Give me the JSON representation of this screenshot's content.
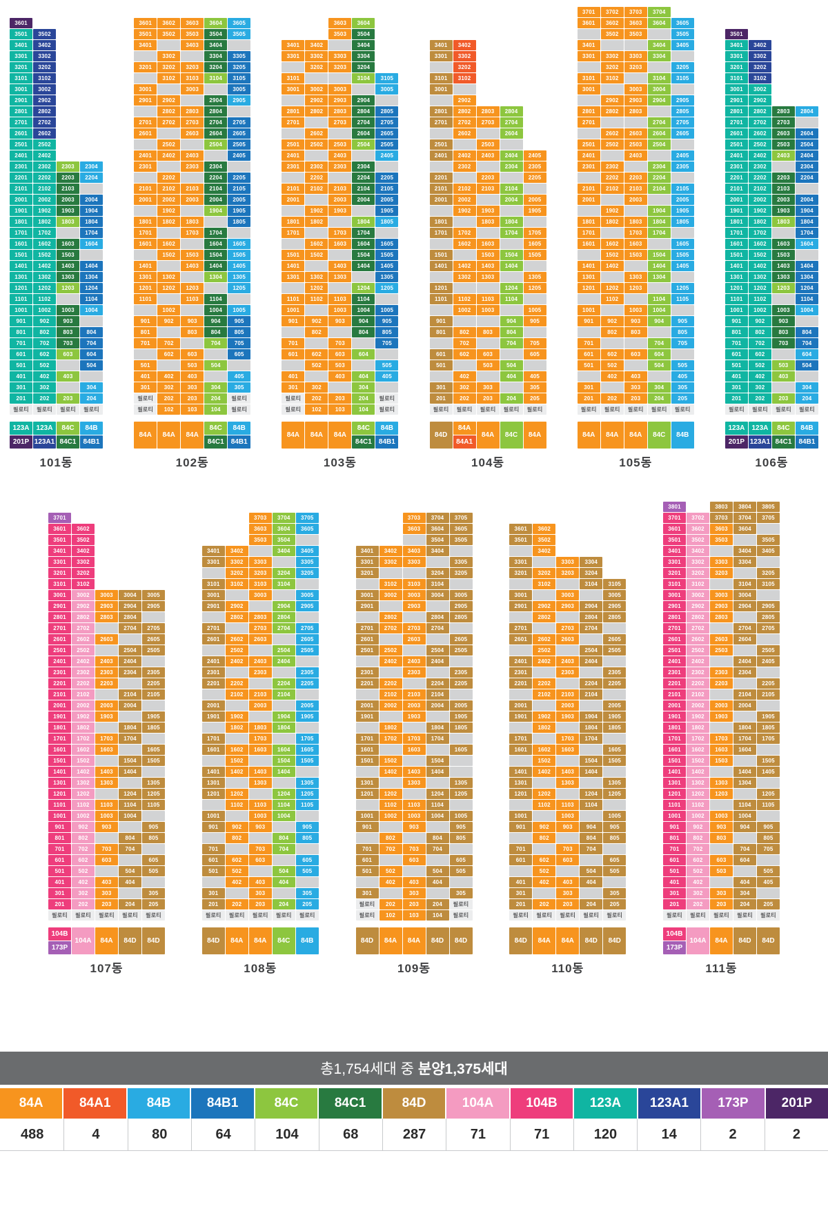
{
  "banner": {
    "prefix": "총1,754세대 중",
    "bold": "분양1,375세대"
  },
  "labels": {
    "piloti": "필로티"
  },
  "palette": {
    "A": {
      "label": "84A",
      "color": "#F7941E"
    },
    "a": {
      "label": "84A1",
      "color": "#F15A29"
    },
    "B": {
      "label": "84B",
      "color": "#29ABE2"
    },
    "b": {
      "label": "84B1",
      "color": "#1C75BC"
    },
    "C": {
      "label": "84C",
      "color": "#8DC63F"
    },
    "c": {
      "label": "84C1",
      "color": "#287A40"
    },
    "D": {
      "label": "84D",
      "color": "#BE8C3E"
    },
    "P": {
      "label": "104A",
      "color": "#F49BC1"
    },
    "Q": {
      "label": "104B",
      "color": "#EE3D7C"
    },
    "T": {
      "label": "123A",
      "color": "#10B5A2"
    },
    "t": {
      "label": "123A1",
      "color": "#2A4699"
    },
    "S": {
      "label": "173P",
      "color": "#A55FB5"
    },
    "R": {
      "label": "201P",
      "color": "#4C2666"
    },
    "gray_color": "#D2D3D4"
  },
  "legend": {
    "items": [
      {
        "code": "A",
        "count": "488"
      },
      {
        "code": "a",
        "count": "4"
      },
      {
        "code": "B",
        "count": "80"
      },
      {
        "code": "b",
        "count": "64"
      },
      {
        "code": "C",
        "count": "104"
      },
      {
        "code": "c",
        "count": "68"
      },
      {
        "code": "D",
        "count": "287"
      },
      {
        "code": "P",
        "count": "71"
      },
      {
        "code": "Q",
        "count": "71"
      },
      {
        "code": "T",
        "count": "120"
      },
      {
        "code": "t",
        "count": "14"
      },
      {
        "code": "S",
        "count": "2"
      },
      {
        "code": "R",
        "count": "2"
      }
    ]
  },
  "rows_layout": [
    [
      "101동",
      "102동",
      "103동",
      "104동",
      "105동",
      "106동"
    ],
    [
      "107동",
      "108동",
      "109동",
      "110동",
      "111동"
    ]
  ],
  "buildings": [
    {
      "name": "101동",
      "top_floor": 36,
      "cols": 4,
      "label_cols": [
        [
          "T",
          "R"
        ],
        [
          "T",
          "t"
        ],
        [
          "C",
          "c"
        ],
        [
          "B",
          "b"
        ]
      ],
      "rows": [
        "R<..",
        "Tt..",
        "Tt..",
        "Tt..",
        "Tt..",
        "Tt..",
        "Tt..",
        "Tt..",
        "Tt..",
        "Tt..",
        "Tt..",
        "TT..",
        "TT..",
        "TTCB",
        "TTcB",
        "TTcg",
        "TTcb",
        "TTcb",
        "TTCb",
        "TTgb",
        "TTcB",
        "TTcg",
        "TTcb",
        "TTcb",
        "TTCb",
        "TTgb",
        "TTcB",
        "TTcg",
        "TTcb",
        "TTcb",
        "TTCb",
        "TTgb",
        "TTCg",
        "TTgB",
        "TTCB",
        "pppp"
      ]
    },
    {
      "name": "102동",
      "top_floor": 36,
      "cols": 5,
      "label_cols": [
        [
          "A"
        ],
        [
          "A"
        ],
        [
          "A"
        ],
        [
          "C",
          "c"
        ],
        [
          "B",
          "b"
        ]
      ],
      "rows": [
        "AAACB",
        "AAAcB",
        "AgAcg",
        "gAgcb",
        "AAAcb",
        "gAACb",
        "AgAgb",
        "AAgcB",
        "gAAcg",
        "AAAcb",
        "AgAcb",
        "gAgCb",
        "AAAgb",
        "AgAcg",
        "gAgcb",
        "AAAcb",
        "AAAcb",
        "gAgCb",
        "AAAgb",
        "AgAcg",
        "AAgcB",
        "gAAcB",
        "AgAcB",
        "AAgCB",
        "AAAgB",
        "AgAcg",
        "gAgcB",
        "AAAcb",
        "AgAcb",
        "AAgCb",
        "gAAgb",
        "AgACg",
        "AAAgB",
        "AAACB",
        "pAACp",
        "pAACp"
      ]
    },
    {
      "name": "103동",
      "top_floor": 36,
      "cols": 5,
      "label_cols": [
        [
          "A"
        ],
        [
          "A"
        ],
        [
          "A"
        ],
        [
          "C",
          "c"
        ],
        [
          "B",
          "b"
        ]
      ],
      "rows": [
        "..AC.",
        "..Ac.",
        "AAgc.",
        "AAAc.",
        "gAAc.",
        "AggCB",
        "AAAgB",
        "gAAcg",
        "AAAcb",
        "AgAcb",
        "gAgcb",
        "AAACb",
        "AgAgB",
        "AAAcg",
        "gAgcb",
        "AAAcb",
        "AgAcb",
        "gAAgb",
        "AAgCB",
        "AgAcg",
        "gAAcb",
        "AAgcb",
        "AgAcb",
        "AAAgb",
        "gAgCB",
        "AAAcg",
        "AgAcb",
        "AAAcb",
        "gAgcb",
        "AgAgb",
        "AAACg",
        "gAAgB",
        "AgACB",
        "AAgCg",
        "pAACp",
        "pAACp"
      ]
    },
    {
      "name": "104동",
      "top_floor": 34,
      "cols": 5,
      "label_cols": [
        [
          "D"
        ],
        [
          "A",
          "a"
        ],
        [
          "A"
        ],
        [
          "C"
        ],
        [
          "A"
        ]
      ],
      "rows": [
        "Da...",
        "Da...",
        "ga...",
        "Da...",
        "Dg...",
        "gA...",
        "DAAC.",
        "DAAC.",
        "gAgC.",
        "DgAg.",
        "DAACA",
        "gAgCA",
        "DgAgA",
        "DAACg",
        "DAgCA",
        "gAAgA",
        "DgACg",
        "DAgCA",
        "gAAgA",
        "DgACA",
        "DAACg",
        "gAAgA",
        "DggCA",
        "DAACg",
        "gAAgA",
        "DggCA",
        "DAACg",
        "gAgCA",
        "DAAgA",
        "DgACg",
        "gAgCA",
        "DAAgA",
        "DAACA",
        "ppppp"
      ]
    },
    {
      "name": "105동",
      "top_floor": 37,
      "cols": 5,
      "label_cols": [
        [
          "A"
        ],
        [
          "A"
        ],
        [
          "A"
        ],
        [
          "C"
        ],
        [
          "B"
        ]
      ],
      "rows": [
        "AAAC.",
        "AAACB",
        "gAAgB",
        "AggCB",
        "AAACg",
        "gAAgB",
        "AAgCB",
        "AgACg",
        "gAACB",
        "AAAgB",
        "AggCB",
        "gAACB",
        "AAACg",
        "AgAgB",
        "AAgCB",
        "gAACg",
        "AAACB",
        "AgAgB",
        "gAgCB",
        "AAACB",
        "AgACg",
        "AAAgB",
        "gAACB",
        "AAgCB",
        "AgACg",
        "AAAgB",
        "gAgCB",
        "AgACg",
        "AAACB",
        "gAAgB",
        "AggCB",
        "AAACg",
        "AAgCB",
        "gAAgB",
        "AgACB",
        "AAACB",
        "ppppp"
      ]
    },
    {
      "name": "106동",
      "top_floor": 35,
      "cols": 4,
      "label_cols": [
        [
          "T",
          "R"
        ],
        [
          "T",
          "t"
        ],
        [
          "C",
          "c"
        ],
        [
          "B",
          "b"
        ]
      ],
      "rows": [
        "R<..",
        "Tt..",
        "Tt..",
        "Tt..",
        "Tt..",
        "TT..",
        "TT..",
        "TTcB",
        "TTcg",
        "TTcb",
        "TTcb",
        "TTCb",
        "TTgb",
        "TTcb",
        "TTcg",
        "TTcb",
        "TTcb",
        "TTCb",
        "TTgb",
        "TTcB",
        "TTcg",
        "TTcb",
        "TTcb",
        "TTCb",
        "TTgb",
        "TTcB",
        "TTcg",
        "TTcb",
        "TTcb",
        "TTgB",
        "TTCb",
        "TTCg",
        "TTgB",
        "TTCB",
        "pppp"
      ]
    },
    {
      "name": "107동",
      "top_floor": 37,
      "cols": 5,
      "label_cols": [
        [
          "Q",
          "S"
        ],
        [
          "P"
        ],
        [
          "A"
        ],
        [
          "D"
        ],
        [
          "D"
        ]
      ],
      "rows": [
        "S<...",
        "QQ...",
        "QQ...",
        "QQ...",
        "QQ...",
        "QQ...",
        "QQ...",
        "QPADD",
        "QPADD",
        "QPADg",
        "QPgDD",
        "QPAgD",
        "QPgDD",
        "QPADg",
        "QPADD",
        "QPAgD",
        "QPgDD",
        "QPADg",
        "QPAgD",
        "QPgDD",
        "QPADg",
        "QPAgD",
        "QPgDD",
        "QPADg",
        "QPAgD",
        "QPgDD",
        "QPADD",
        "QPADg",
        "QPAgD",
        "QPgDD",
        "QPADg",
        "QPAgD",
        "QPgDD",
        "QPADg",
        "QPAgD",
        "QPADD",
        "ppppp"
      ]
    },
    {
      "name": "108동",
      "top_floor": 37,
      "cols": 5,
      "label_cols": [
        [
          "D"
        ],
        [
          "A"
        ],
        [
          "A"
        ],
        [
          "C"
        ],
        [
          "B"
        ]
      ],
      "rows": [
        "..ACB",
        "..ACB",
        "..ACg",
        "DAgCB",
        "DAAgB",
        "gAACB",
        "DAACg",
        "DgAgB",
        "DAgCB",
        "gAACg",
        "DgACB",
        "DAAgB",
        "gAgCB",
        "DAACg",
        "DgAgB",
        "DAgCB",
        "gAACg",
        "DgAgB",
        "DAgCB",
        "gAACg",
        "DgAgB",
        "DAACB",
        "gAgCB",
        "DAACg",
        "DgAgB",
        "DAgCB",
        "gAACB",
        "DgACg",
        "DAAgB",
        "gAgCB",
        "DgACg",
        "DAAgB",
        "DAgCB",
        "gAACg",
        "DgAgB",
        "DAACB",
        "ppppp"
      ]
    },
    {
      "name": "109동",
      "top_floor": 37,
      "cols": 5,
      "label_cols": [
        [
          "D"
        ],
        [
          "A"
        ],
        [
          "A"
        ],
        [
          "D"
        ],
        [
          "D"
        ]
      ],
      "rows": [
        "..ADD",
        "..ADD",
        "..gDD",
        "DAADg",
        "DAAgD",
        "DggDD",
        "gAADg",
        "DAADD",
        "DgAgD",
        "gAgDD",
        "DAADg",
        "DgAgD",
        "DAgDD",
        "gAADg",
        "DgAgD",
        "DAgDD",
        "gAADg",
        "DAADD",
        "DgAgD",
        "gAgDD",
        "DAADg",
        "DgAgD",
        "DAgDg",
        "gAADg",
        "DgAgD",
        "DAgDD",
        "gAADg",
        "DAADD",
        "DgAgD",
        "gAgDD",
        "DAADg",
        "DgAgD",
        "DAgDD",
        "gAADg",
        "DgAgD",
        "pAADp",
        "pAADp"
      ]
    },
    {
      "name": "110동",
      "top_floor": 36,
      "cols": 5,
      "label_cols": [
        [
          "D"
        ],
        [
          "A"
        ],
        [
          "A"
        ],
        [
          "D"
        ],
        [
          "D"
        ]
      ],
      "rows": [
        "DA...",
        "DA...",
        "gA...",
        "DgAD.",
        "DAAD.",
        "gAgDD",
        "DgAgD",
        "DAADD",
        "gAgDD",
        "DgADg",
        "DAAgD",
        "gAgDD",
        "DAADg",
        "DgAgD",
        "DAgDD",
        "gAADg",
        "DgAgD",
        "DAADD",
        "gAgDD",
        "DgADg",
        "DAAgD",
        "gAgDD",
        "DAADg",
        "DgAgD",
        "DAgDD",
        "gAADg",
        "DgAgD",
        "DAADD",
        "gAgDD",
        "DgADg",
        "DAAgD",
        "gAgDD",
        "DAADg",
        "DgAgD",
        "DAADD",
        "ppppp"
      ]
    },
    {
      "name": "111동",
      "top_floor": 38,
      "cols": 5,
      "label_cols": [
        [
          "Q",
          "S"
        ],
        [
          "P"
        ],
        [
          "A"
        ],
        [
          "D"
        ],
        [
          "D"
        ]
      ],
      "rows": [
        "S<DDD",
        "QPDDD",
        "QPADg",
        "QPAgD",
        "QPgDD",
        "QPADg",
        "QPAgD",
        "QPgDD",
        "QPADg",
        "QPADD",
        "QPAgD",
        "QPgDD",
        "QPADg",
        "QPAgD",
        "QPgDD",
        "QPADg",
        "QPAgD",
        "QPgDD",
        "QPADg",
        "QPAgD",
        "QPgDD",
        "QPADD",
        "QPADg",
        "QPAgD",
        "QPgDD",
        "QPADg",
        "QPAgD",
        "QPgDD",
        "QPADg",
        "QPADD",
        "QPAgD",
        "QPgDD",
        "QPADg",
        "QPAgD",
        "QPgDD",
        "QPADg",
        "QPADD",
        "ppppp"
      ]
    }
  ]
}
